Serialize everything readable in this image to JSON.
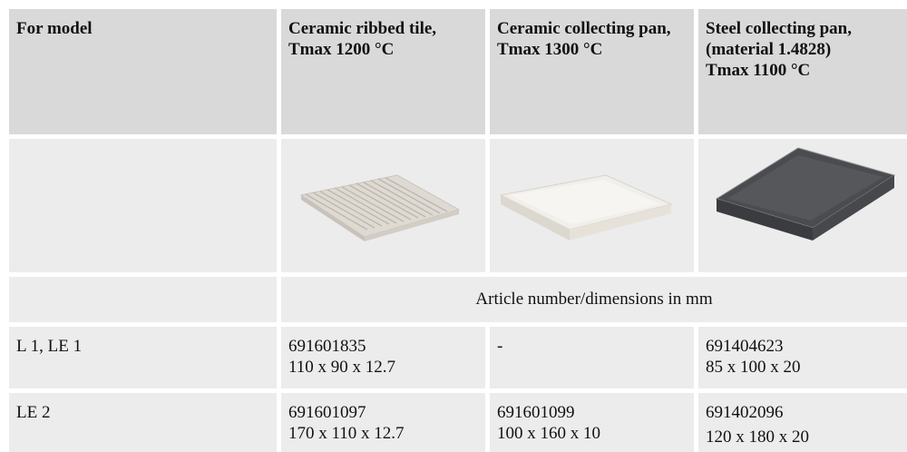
{
  "table": {
    "header": [
      [
        "For model"
      ],
      [
        "Ceramic ribbed tile,",
        "Tmax 1200 °C"
      ],
      [
        "Ceramic collecting pan,",
        "Tmax 1300 °C"
      ],
      [
        "Steel collecting pan, (material 1.4828)",
        "Tmax 1100 °C"
      ]
    ],
    "subheader": "Article number/dimensions in mm",
    "rows": [
      {
        "model": "L 1, LE 1",
        "cells": [
          [
            "691601835",
            "110 x 90 x 12.7"
          ],
          [
            "-"
          ],
          [
            "691404623",
            "85 x 100 x 20"
          ]
        ]
      },
      {
        "model": "LE 2",
        "cells": [
          [
            "691601097",
            "170 x 110 x 12.7"
          ],
          [
            "691601099",
            "100 x 160 x 10"
          ],
          [
            "691402096",
            "120 x 180 x 20"
          ]
        ]
      }
    ]
  }
}
